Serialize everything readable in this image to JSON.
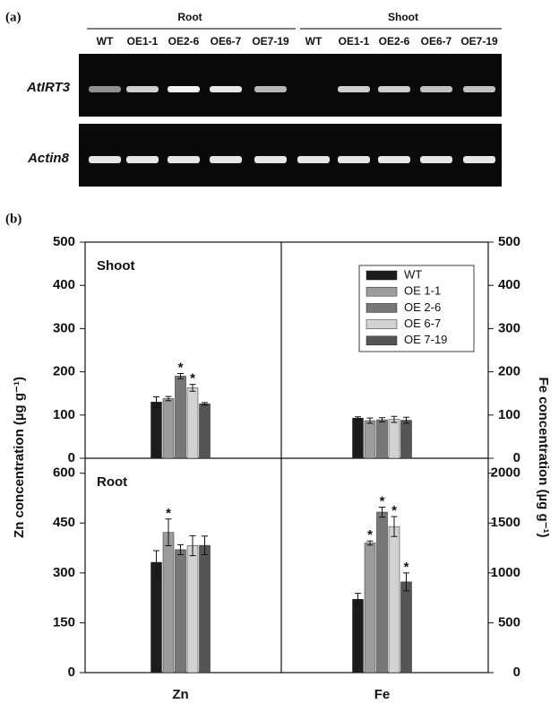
{
  "panel_a": {
    "label": "(a)",
    "groups": [
      {
        "name": "Root",
        "lanes": [
          "WT",
          "OE1-1",
          "OE2-6",
          "OE6-7",
          "OE7-19"
        ]
      },
      {
        "name": "Shoot",
        "lanes": [
          "WT",
          "OE1-1",
          "OE2-6",
          "OE6-7",
          "OE7-19"
        ]
      }
    ],
    "genes": [
      "AtIRT3",
      "Actin8"
    ]
  },
  "panel_b": {
    "label": "(b)",
    "ylabel": "Zn concentration (µg g⁻¹)",
    "y2label": "Fe concentration (µg g⁻¹)"
  },
  "chart_data": [
    {
      "type": "bar",
      "title": "Shoot",
      "ylim": [
        0,
        500
      ],
      "yticks": [
        0,
        100,
        200,
        300,
        400,
        500
      ],
      "significant": [
        null,
        null,
        "*",
        "*",
        null
      ],
      "series": [
        {
          "color": "#1c1c1c",
          "values": [
            130
          ],
          "errors": [
            12
          ]
        },
        {
          "color": "#9c9c9c",
          "values": [
            138
          ],
          "errors": [
            5
          ]
        },
        {
          "color": "#777777",
          "values": [
            190
          ],
          "errors": [
            6
          ]
        },
        {
          "color": "#d2d2d2",
          "values": [
            163
          ],
          "errors": [
            8
          ]
        },
        {
          "color": "#555555",
          "values": [
            126
          ],
          "errors": [
            3
          ]
        }
      ]
    },
    {
      "type": "bar",
      "y2lim": [
        0,
        500
      ],
      "y2ticks": [
        0,
        100,
        200,
        300,
        400,
        500
      ],
      "legend": "upper right",
      "significant": [
        null,
        null,
        null,
        null,
        null
      ],
      "series": [
        {
          "name": "WT",
          "color": "#1c1c1c",
          "axis": "y2",
          "values": [
            93
          ],
          "errors": [
            3
          ]
        },
        {
          "name": "OE 1-1",
          "color": "#9c9c9c",
          "axis": "y2",
          "values": [
            87
          ],
          "errors": [
            6
          ]
        },
        {
          "name": "OE 2-6",
          "color": "#777777",
          "axis": "y2",
          "values": [
            89
          ],
          "errors": [
            5
          ]
        },
        {
          "name": "OE 6-7",
          "color": "#d2d2d2",
          "axis": "y2",
          "values": [
            90
          ],
          "errors": [
            7
          ]
        },
        {
          "name": "OE 7-19",
          "color": "#555555",
          "axis": "y2",
          "values": [
            88
          ],
          "errors": [
            7
          ]
        }
      ]
    },
    {
      "type": "bar",
      "title": "Root",
      "categories": [
        "Zn"
      ],
      "ylim": [
        0,
        645
      ],
      "yticks": [
        0,
        150,
        300,
        450,
        600
      ],
      "significant": [
        null,
        "*",
        null,
        null,
        null
      ],
      "series": [
        {
          "color": "#1c1c1c",
          "values": [
            332
          ],
          "errors": [
            35
          ]
        },
        {
          "color": "#9c9c9c",
          "values": [
            422
          ],
          "errors": [
            40
          ]
        },
        {
          "color": "#777777",
          "values": [
            370
          ],
          "errors": [
            15
          ]
        },
        {
          "color": "#d2d2d2",
          "values": [
            382
          ],
          "errors": [
            30
          ]
        },
        {
          "color": "#555555",
          "values": [
            383
          ],
          "errors": [
            28
          ]
        }
      ]
    },
    {
      "type": "bar",
      "categories": [
        "Fe"
      ],
      "y2lim": [
        0,
        2150
      ],
      "y2ticks": [
        0,
        500,
        1000,
        1500,
        2000
      ],
      "significant": [
        null,
        "*",
        "*",
        "*",
        "*"
      ],
      "series": [
        {
          "color": "#1c1c1c",
          "axis": "y2",
          "values": [
            735
          ],
          "errors": [
            60
          ]
        },
        {
          "color": "#9c9c9c",
          "axis": "y2",
          "values": [
            1300
          ],
          "errors": [
            20
          ]
        },
        {
          "color": "#777777",
          "axis": "y2",
          "values": [
            1610
          ],
          "errors": [
            50
          ]
        },
        {
          "color": "#d2d2d2",
          "axis": "y2",
          "values": [
            1465
          ],
          "errors": [
            100
          ]
        },
        {
          "color": "#555555",
          "axis": "y2",
          "values": [
            910
          ],
          "errors": [
            90
          ]
        }
      ]
    }
  ]
}
